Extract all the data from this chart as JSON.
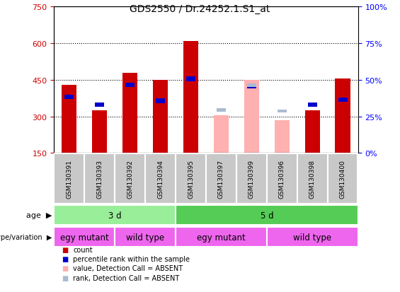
{
  "title": "GDS2550 / Dr.24252.1.S1_at",
  "samples": [
    "GSM130391",
    "GSM130393",
    "GSM130392",
    "GSM130394",
    "GSM130395",
    "GSM130397",
    "GSM130399",
    "GSM130396",
    "GSM130398",
    "GSM130400"
  ],
  "count_values": [
    430,
    325,
    480,
    450,
    610,
    null,
    450,
    null,
    325,
    455
  ],
  "count_absent": [
    null,
    null,
    null,
    null,
    null,
    305,
    450,
    285,
    null,
    null
  ],
  "rank_values": [
    370,
    340,
    420,
    355,
    445,
    null,
    415,
    null,
    340,
    360
  ],
  "rank_absent": [
    null,
    null,
    null,
    null,
    null,
    320,
    420,
    315,
    null,
    null
  ],
  "ylim": [
    150,
    750
  ],
  "yticks": [
    150,
    300,
    450,
    600,
    750
  ],
  "yright_ticks": [
    0,
    25,
    50,
    75,
    100
  ],
  "yright_tick_positions": [
    150,
    300,
    450,
    600,
    750
  ],
  "bar_width": 0.5,
  "rank_bar_width": 0.3,
  "count_color": "#CC0000",
  "count_absent_color": "#FFB0B0",
  "rank_color": "#0000CC",
  "rank_absent_color": "#AABBD0",
  "grid_dotted_lines": [
    300,
    450,
    600
  ],
  "age_groups": [
    {
      "label": "3 d",
      "start": 0,
      "end": 4,
      "color": "#99EE99"
    },
    {
      "label": "5 d",
      "start": 4,
      "end": 10,
      "color": "#55CC55"
    }
  ],
  "geno_groups": [
    {
      "label": "egy mutant",
      "start": 0,
      "end": 2
    },
    {
      "label": "wild type",
      "start": 2,
      "end": 4
    },
    {
      "label": "egy mutant",
      "start": 4,
      "end": 7
    },
    {
      "label": "wild type",
      "start": 7,
      "end": 10
    }
  ],
  "geno_color": "#EE66EE",
  "label_box_color": "#C8C8C8",
  "title_fontsize": 10,
  "tick_fontsize": 8,
  "sample_fontsize": 6.5,
  "row_fontsize": 8.5
}
